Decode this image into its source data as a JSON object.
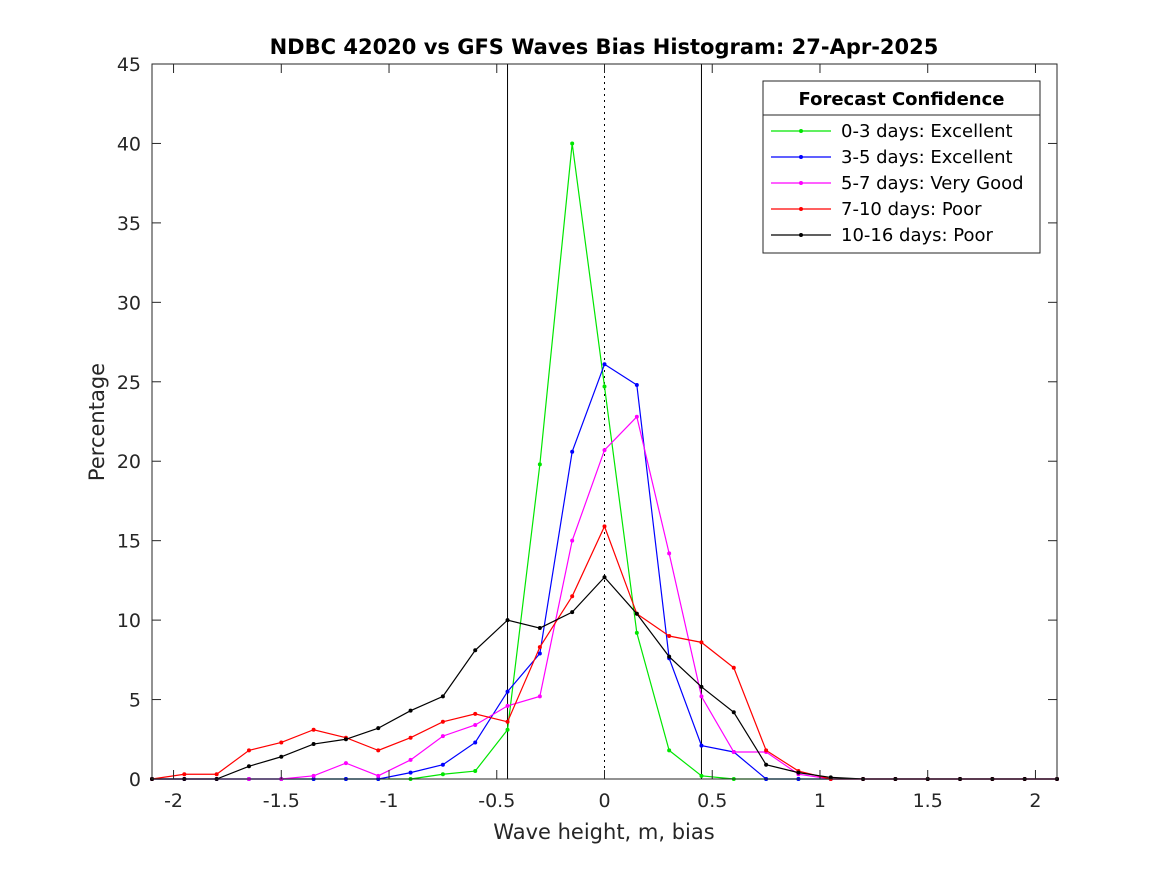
{
  "chart_data": {
    "type": "line",
    "title": "NDBC 42020 vs GFS Waves Bias Histogram: 27-Apr-2025",
    "xlabel": "Wave height, m, bias",
    "ylabel": "Percentage",
    "xlim": [
      -2.1,
      2.1
    ],
    "ylim": [
      0,
      45
    ],
    "xticks": [
      -2,
      -1.5,
      -1,
      -0.5,
      0,
      0.5,
      1,
      1.5,
      2
    ],
    "xtick_labels": [
      "-2",
      "-1.5",
      "-1",
      "-0.5",
      "0",
      "0.5",
      "1",
      "1.5",
      "2"
    ],
    "yticks": [
      0,
      5,
      10,
      15,
      20,
      25,
      30,
      35,
      40,
      45
    ],
    "ytick_labels": [
      "0",
      "5",
      "10",
      "15",
      "20",
      "25",
      "30",
      "35",
      "40",
      "45"
    ],
    "grid": false,
    "reference_lines": [
      {
        "x": -0.45,
        "style": "solid",
        "color": "#000000"
      },
      {
        "x": 0,
        "style": "dotted",
        "color": "#000000"
      },
      {
        "x": 0.45,
        "style": "solid",
        "color": "#000000"
      }
    ],
    "legend": {
      "title": "Forecast Confidence",
      "position": "top-right"
    },
    "x": [
      -2.1,
      -1.95,
      -1.8,
      -1.65,
      -1.5,
      -1.35,
      -1.2,
      -1.05,
      -0.9,
      -0.75,
      -0.6,
      -0.45,
      -0.3,
      -0.15,
      0,
      0.15,
      0.3,
      0.45,
      0.6,
      0.75,
      0.9,
      1.05,
      1.2,
      1.35,
      1.5,
      1.65,
      1.8,
      1.95,
      2.1
    ],
    "series": [
      {
        "name": "0-3 days: Excellent",
        "color": "#00e600",
        "values": [
          0,
          0,
          0,
          0,
          0,
          0,
          0,
          0,
          0,
          0.3,
          0.5,
          3.1,
          19.8,
          40.0,
          24.7,
          9.2,
          1.8,
          0.2,
          0,
          0,
          0,
          0,
          0,
          0,
          0,
          0,
          0,
          0,
          0
        ]
      },
      {
        "name": "3-5 days: Excellent",
        "color": "#0000ff",
        "values": [
          0,
          0,
          0,
          0,
          0,
          0,
          0,
          0,
          0.4,
          0.9,
          2.3,
          5.5,
          7.9,
          20.6,
          26.1,
          24.8,
          7.6,
          2.1,
          1.7,
          0,
          0,
          0,
          0,
          0,
          0,
          0,
          0,
          0,
          0
        ]
      },
      {
        "name": "5-7 days: Very Good",
        "color": "#ff00ff",
        "values": [
          0,
          0,
          0,
          0,
          0,
          0.2,
          1.0,
          0.2,
          1.2,
          2.7,
          3.4,
          4.6,
          5.2,
          15.0,
          20.7,
          22.8,
          14.2,
          5.2,
          1.7,
          1.7,
          0.3,
          0,
          0,
          0,
          0,
          0,
          0,
          0,
          0
        ]
      },
      {
        "name": "7-10 days: Poor",
        "color": "#ff0000",
        "values": [
          0,
          0.3,
          0.3,
          1.8,
          2.3,
          3.1,
          2.6,
          1.8,
          2.6,
          3.6,
          4.1,
          3.6,
          8.3,
          11.5,
          15.9,
          10.4,
          9.0,
          8.6,
          7.0,
          1.8,
          0.5,
          0,
          0,
          0,
          0,
          0,
          0,
          0,
          0
        ]
      },
      {
        "name": "10-16 days: Poor",
        "color": "#000000",
        "values": [
          0,
          0,
          0,
          0.8,
          1.4,
          2.2,
          2.5,
          3.2,
          4.3,
          5.2,
          8.1,
          10.0,
          9.5,
          10.5,
          12.7,
          10.4,
          7.7,
          5.8,
          4.2,
          0.9,
          0.4,
          0.1,
          0,
          0,
          0,
          0,
          0,
          0,
          0
        ]
      }
    ]
  }
}
